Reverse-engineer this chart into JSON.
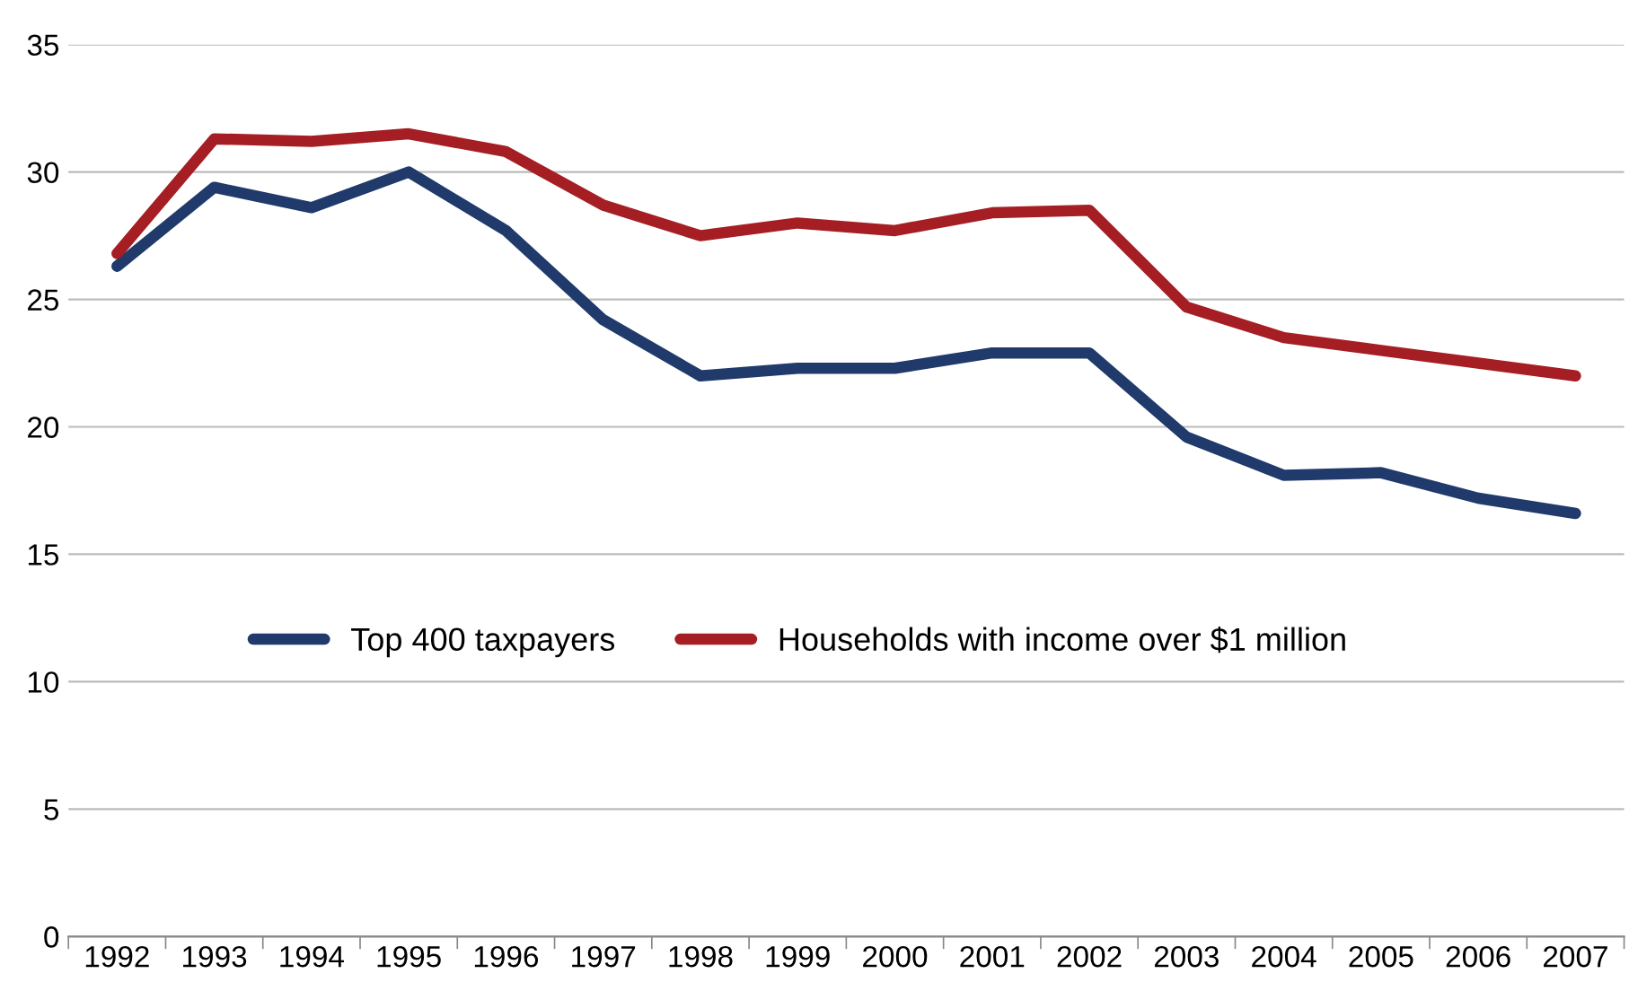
{
  "chart_data": {
    "type": "line",
    "categories": [
      "1992",
      "1993",
      "1994",
      "1995",
      "1996",
      "1997",
      "1998",
      "1999",
      "2000",
      "2001",
      "2002",
      "2003",
      "2004",
      "2005",
      "2006",
      "2007"
    ],
    "series": [
      {
        "name": "Top 400 taxpayers",
        "color": "#1f3a6b",
        "values": [
          26.3,
          29.4,
          28.6,
          30.0,
          27.7,
          24.2,
          22.0,
          22.3,
          22.3,
          22.9,
          22.9,
          19.6,
          18.1,
          18.2,
          17.2,
          16.6
        ]
      },
      {
        "name": "Households with income over $1 million",
        "color": "#a51e23",
        "values": [
          26.8,
          31.3,
          31.2,
          31.5,
          30.8,
          28.7,
          27.5,
          28.0,
          27.7,
          28.4,
          28.5,
          24.7,
          23.5,
          23.0,
          22.5,
          22.0
        ]
      }
    ],
    "ylim": [
      0,
      35
    ],
    "yticks": [
      0,
      5,
      10,
      15,
      20,
      25,
      30,
      35
    ],
    "grid": "y",
    "legend": "left",
    "marker": "none",
    "line_style": "solid"
  }
}
